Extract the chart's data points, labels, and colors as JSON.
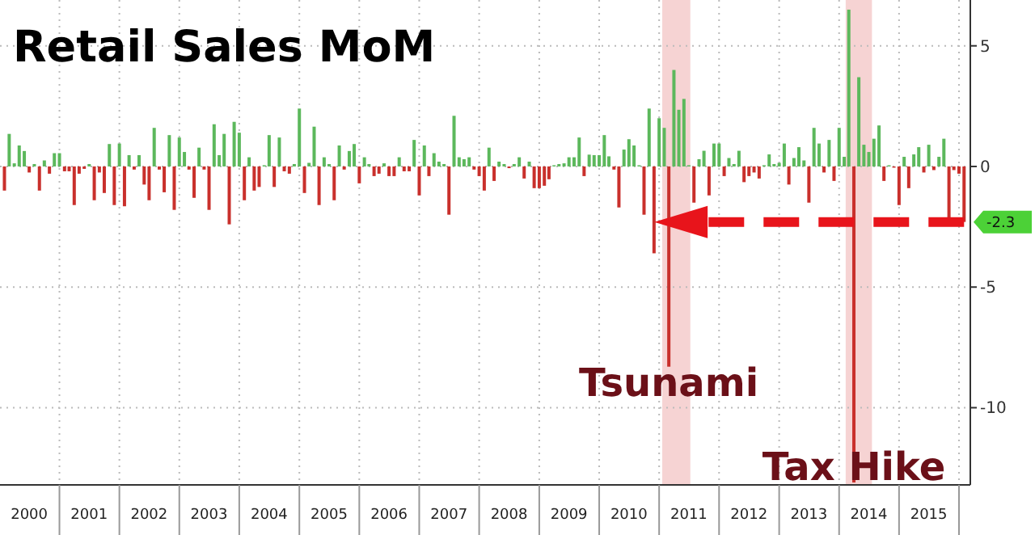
{
  "chart_data": {
    "type": "bar",
    "title": "Retail Sales MoM",
    "x": [
      "2000-02",
      "2000-03",
      "2000-04",
      "2000-05",
      "2000-06",
      "2000-07",
      "2000-08",
      "2000-09",
      "2000-10",
      "2000-11",
      "2000-12",
      "2001-01",
      "2001-02",
      "2001-03",
      "2001-04",
      "2001-05",
      "2001-06",
      "2001-07",
      "2001-08",
      "2001-09",
      "2001-10",
      "2001-11",
      "2001-12",
      "2002-01",
      "2002-02",
      "2002-03",
      "2002-04",
      "2002-05",
      "2002-06",
      "2002-07",
      "2002-08",
      "2002-09",
      "2002-10",
      "2002-11",
      "2002-12",
      "2003-01",
      "2003-02",
      "2003-03",
      "2003-04",
      "2003-05",
      "2003-06",
      "2003-07",
      "2003-08",
      "2003-09",
      "2003-10",
      "2003-11",
      "2003-12",
      "2004-01",
      "2004-02",
      "2004-03",
      "2004-04",
      "2004-05",
      "2004-06",
      "2004-07",
      "2004-08",
      "2004-09",
      "2004-10",
      "2004-11",
      "2004-12",
      "2005-01",
      "2005-02",
      "2005-03",
      "2005-04",
      "2005-05",
      "2005-06",
      "2005-07",
      "2005-08",
      "2005-09",
      "2005-10",
      "2005-11",
      "2005-12",
      "2006-01",
      "2006-02",
      "2006-03",
      "2006-04",
      "2006-05",
      "2006-06",
      "2006-07",
      "2006-08",
      "2006-09",
      "2006-10",
      "2006-11",
      "2006-12",
      "2007-01",
      "2007-02",
      "2007-03",
      "2007-04",
      "2007-05",
      "2007-06",
      "2007-07",
      "2007-08",
      "2007-09",
      "2007-10",
      "2007-11",
      "2007-12",
      "2008-01",
      "2008-02",
      "2008-03",
      "2008-04",
      "2008-05",
      "2008-06",
      "2008-07",
      "2008-08",
      "2008-09",
      "2008-10",
      "2008-11",
      "2008-12",
      "2009-01",
      "2009-02",
      "2009-03",
      "2009-04",
      "2009-05",
      "2009-06",
      "2009-07",
      "2009-08",
      "2009-09",
      "2009-10",
      "2009-11",
      "2009-12",
      "2010-01",
      "2010-02",
      "2010-03",
      "2010-04",
      "2010-05",
      "2010-06",
      "2010-07",
      "2010-08",
      "2010-09",
      "2010-10",
      "2010-11",
      "2010-12",
      "2011-01",
      "2011-02",
      "2011-03",
      "2011-04",
      "2011-05",
      "2011-06",
      "2011-07",
      "2011-08",
      "2011-09",
      "2011-10",
      "2011-11",
      "2011-12",
      "2012-01",
      "2012-02",
      "2012-03",
      "2012-04",
      "2012-05",
      "2012-06",
      "2012-07",
      "2012-08",
      "2012-09",
      "2012-10",
      "2012-11",
      "2012-12",
      "2013-01",
      "2013-02",
      "2013-03",
      "2013-04",
      "2013-05",
      "2013-06",
      "2013-07",
      "2013-08",
      "2013-09",
      "2013-10",
      "2013-11",
      "2013-12",
      "2014-01",
      "2014-02",
      "2014-03",
      "2014-04",
      "2014-05",
      "2014-06",
      "2014-07",
      "2014-08",
      "2014-09",
      "2014-10",
      "2014-11",
      "2014-12",
      "2015-01",
      "2015-02",
      "2015-03",
      "2015-04",
      "2015-05",
      "2015-06",
      "2015-07",
      "2015-08",
      "2015-09",
      "2015-10",
      "2015-11",
      "2015-12",
      "2016-01",
      "2016-02"
    ],
    "values": [
      -1.0,
      1.35,
      0.13,
      0.87,
      0.64,
      -0.25,
      0.1,
      -1.0,
      0.25,
      -0.3,
      0.55,
      0.55,
      -0.2,
      -0.2,
      -1.6,
      -0.3,
      -0.1,
      0.1,
      -1.4,
      -0.25,
      -1.1,
      0.93,
      -1.6,
      0.95,
      -1.65,
      0.47,
      -0.13,
      0.47,
      -0.75,
      -1.4,
      1.6,
      -0.13,
      -1.07,
      1.3,
      -1.8,
      1.2,
      0.6,
      -0.13,
      -1.3,
      0.78,
      -0.13,
      -1.8,
      1.75,
      0.47,
      1.35,
      -2.4,
      1.85,
      1.4,
      -1.4,
      0.38,
      -1.0,
      -0.85,
      0.05,
      1.3,
      -0.85,
      1.2,
      -0.2,
      -0.3,
      0.1,
      2.4,
      -1.1,
      0.15,
      1.65,
      -1.6,
      0.38,
      0.1,
      -1.4,
      0.87,
      -0.13,
      0.64,
      0.93,
      -0.7,
      0.38,
      0.1,
      -0.4,
      -0.3,
      0.13,
      -0.4,
      -0.4,
      0.38,
      -0.2,
      -0.2,
      1.1,
      -1.2,
      0.87,
      -0.4,
      0.55,
      0.2,
      0.1,
      -2.0,
      2.1,
      0.38,
      0.3,
      0.38,
      -0.13,
      -0.4,
      -1.0,
      0.78,
      -0.6,
      0.2,
      0.1,
      -0.07,
      0.1,
      0.38,
      -0.5,
      0.2,
      -0.9,
      -0.9,
      -0.8,
      -0.53,
      0.05,
      0.1,
      0.13,
      0.38,
      0.38,
      1.2,
      -0.4,
      0.49,
      0.47,
      0.47,
      1.3,
      0.42,
      -0.13,
      -1.7,
      0.7,
      1.13,
      0.87,
      0.05,
      -2.0,
      2.4,
      -3.6,
      2.0,
      1.6,
      -8.3,
      4.0,
      2.35,
      2.8,
      0.05,
      -1.5,
      0.3,
      0.65,
      -1.2,
      0.95,
      0.95,
      -0.4,
      0.35,
      0.1,
      0.65,
      -0.65,
      -0.4,
      -0.25,
      -0.5,
      0.05,
      0.5,
      0.1,
      0.15,
      0.95,
      -0.75,
      0.35,
      0.8,
      0.25,
      -1.5,
      1.6,
      0.95,
      -0.25,
      1.1,
      -0.6,
      1.6,
      0.4,
      6.5,
      -13.1,
      3.7,
      0.9,
      0.6,
      1.15,
      1.7,
      -0.6,
      0.05,
      -0.05,
      -1.6,
      0.4,
      -0.9,
      0.5,
      0.8,
      -0.25,
      0.9,
      -0.15,
      0.4,
      1.15,
      -2.2,
      -0.15,
      -0.3,
      -2.3
    ],
    "colors": [
      "#c9302c",
      "#5cb85c",
      "#5cb85c",
      "#5cb85c",
      "#5cb85c",
      "#c9302c",
      "#5cb85c",
      "#c9302c",
      "#5cb85c",
      "#c9302c",
      "#5cb85c",
      "#5cb85c",
      "#c9302c",
      "#c9302c",
      "#c9302c",
      "#c9302c",
      "#c9302c",
      "#5cb85c",
      "#c9302c",
      "#c9302c",
      "#c9302c",
      "#5cb85c",
      "#c9302c",
      "#5cb85c",
      "#c9302c",
      "#5cb85c",
      "#c9302c",
      "#5cb85c",
      "#c9302c",
      "#c9302c",
      "#5cb85c",
      "#c9302c",
      "#c9302c",
      "#5cb85c",
      "#c9302c",
      "#5cb85c",
      "#5cb85c",
      "#c9302c",
      "#c9302c",
      "#5cb85c",
      "#c9302c",
      "#c9302c",
      "#5cb85c",
      "#5cb85c",
      "#5cb85c",
      "#c9302c",
      "#5cb85c",
      "#5cb85c",
      "#c9302c",
      "#5cb85c",
      "#c9302c",
      "#c9302c",
      "#5cb85c",
      "#5cb85c",
      "#c9302c",
      "#5cb85c",
      "#c9302c",
      "#c9302c",
      "#5cb85c",
      "#5cb85c",
      "#c9302c",
      "#5cb85c",
      "#5cb85c",
      "#c9302c",
      "#5cb85c",
      "#5cb85c",
      "#c9302c",
      "#5cb85c",
      "#c9302c",
      "#5cb85c",
      "#5cb85c",
      "#c9302c",
      "#5cb85c",
      "#5cb85c",
      "#c9302c",
      "#c9302c",
      "#5cb85c",
      "#c9302c",
      "#c9302c",
      "#5cb85c",
      "#c9302c",
      "#c9302c",
      "#5cb85c",
      "#c9302c",
      "#5cb85c",
      "#c9302c",
      "#5cb85c",
      "#5cb85c",
      "#5cb85c",
      "#c9302c",
      "#5cb85c",
      "#5cb85c",
      "#5cb85c",
      "#5cb85c",
      "#c9302c",
      "#c9302c",
      "#c9302c",
      "#5cb85c",
      "#c9302c",
      "#5cb85c",
      "#5cb85c",
      "#c9302c",
      "#5cb85c",
      "#5cb85c",
      "#c9302c",
      "#5cb85c",
      "#c9302c",
      "#c9302c",
      "#c9302c",
      "#c9302c",
      "#5cb85c",
      "#5cb85c",
      "#5cb85c",
      "#5cb85c",
      "#5cb85c",
      "#5cb85c",
      "#c9302c",
      "#5cb85c",
      "#5cb85c",
      "#5cb85c",
      "#5cb85c",
      "#5cb85c",
      "#c9302c",
      "#c9302c",
      "#5cb85c",
      "#5cb85c",
      "#5cb85c",
      "#5cb85c",
      "#c9302c",
      "#5cb85c",
      "#c9302c",
      "#5cb85c",
      "#5cb85c",
      "#c9302c",
      "#5cb85c",
      "#5cb85c",
      "#5cb85c",
      "#5cb85c",
      "#c9302c",
      "#5cb85c",
      "#5cb85c",
      "#c9302c",
      "#5cb85c",
      "#5cb85c",
      "#c9302c",
      "#5cb85c",
      "#5cb85c",
      "#5cb85c",
      "#c9302c",
      "#c9302c",
      "#c9302c",
      "#c9302c",
      "#5cb85c",
      "#5cb85c",
      "#5cb85c",
      "#5cb85c",
      "#5cb85c",
      "#c9302c",
      "#5cb85c",
      "#5cb85c",
      "#5cb85c",
      "#c9302c",
      "#5cb85c",
      "#5cb85c",
      "#c9302c",
      "#5cb85c",
      "#c9302c",
      "#5cb85c",
      "#5cb85c",
      "#5cb85c",
      "#c9302c",
      "#5cb85c",
      "#5cb85c",
      "#5cb85c",
      "#5cb85c",
      "#5cb85c",
      "#c9302c",
      "#5cb85c",
      "#c9302c",
      "#c9302c",
      "#5cb85c",
      "#c9302c",
      "#5cb85c",
      "#5cb85c",
      "#c9302c",
      "#5cb85c",
      "#c9302c",
      "#5cb85c",
      "#5cb85c",
      "#c9302c",
      "#c9302c",
      "#c9302c",
      "#c9302c"
    ],
    "xlim": [
      "2000-01-05",
      "2016-03-10"
    ],
    "xticks": [
      {
        "value": "2000-07",
        "label": "2000"
      },
      {
        "value": "2001-01",
        "label": null
      },
      {
        "value": "2001-07",
        "label": "2001"
      },
      {
        "value": "2002-01",
        "label": null
      },
      {
        "value": "2002-07",
        "label": "2002"
      },
      {
        "value": "2003-01",
        "label": null
      },
      {
        "value": "2003-07",
        "label": "2003"
      },
      {
        "value": "2004-01",
        "label": null
      },
      {
        "value": "2004-07",
        "label": "2004"
      },
      {
        "value": "2005-01",
        "label": null
      },
      {
        "value": "2005-07",
        "label": "2005"
      },
      {
        "value": "2006-01",
        "label": null
      },
      {
        "value": "2006-07",
        "label": "2006"
      },
      {
        "value": "2007-01",
        "label": null
      },
      {
        "value": "2007-07",
        "label": "2007"
      },
      {
        "value": "2008-01",
        "label": null
      },
      {
        "value": "2008-07",
        "label": "2008"
      },
      {
        "value": "2009-01",
        "label": null
      },
      {
        "value": "2009-07",
        "label": "2009"
      },
      {
        "value": "2010-01",
        "label": null
      },
      {
        "value": "2010-07",
        "label": "2010"
      },
      {
        "value": "2011-01",
        "label": null
      },
      {
        "value": "2011-07",
        "label": "2011"
      },
      {
        "value": "2012-01",
        "label": null
      },
      {
        "value": "2012-07",
        "label": "2012"
      },
      {
        "value": "2013-01",
        "label": null
      },
      {
        "value": "2013-07",
        "label": "2013"
      },
      {
        "value": "2014-01",
        "label": null
      },
      {
        "value": "2014-07",
        "label": "2014"
      },
      {
        "value": "2015-01",
        "label": null
      },
      {
        "value": "2015-07",
        "label": "2015"
      },
      {
        "value": "2016-01",
        "label": null
      }
    ],
    "ylim": [
      -13.2,
      6.9
    ],
    "yticks": [
      5,
      0,
      -5,
      -10
    ],
    "grid": true,
    "bands": [
      {
        "axis": "x",
        "from": "2011-01-20",
        "to": "2011-07-10",
        "color": "#f6d3d3"
      },
      {
        "axis": "x",
        "from": "2014-02-10",
        "to": "2014-07-20",
        "color": "#f6d3d3"
      }
    ],
    "annotations": [
      {
        "text": "Tsunami",
        "x": "2011-03",
        "y": -8.3
      },
      {
        "text": "Tax Hike",
        "x": "2014-04",
        "y": -13.1
      },
      {
        "text": "-2.3",
        "x": "2016-02",
        "y": -2.3
      }
    ]
  }
}
